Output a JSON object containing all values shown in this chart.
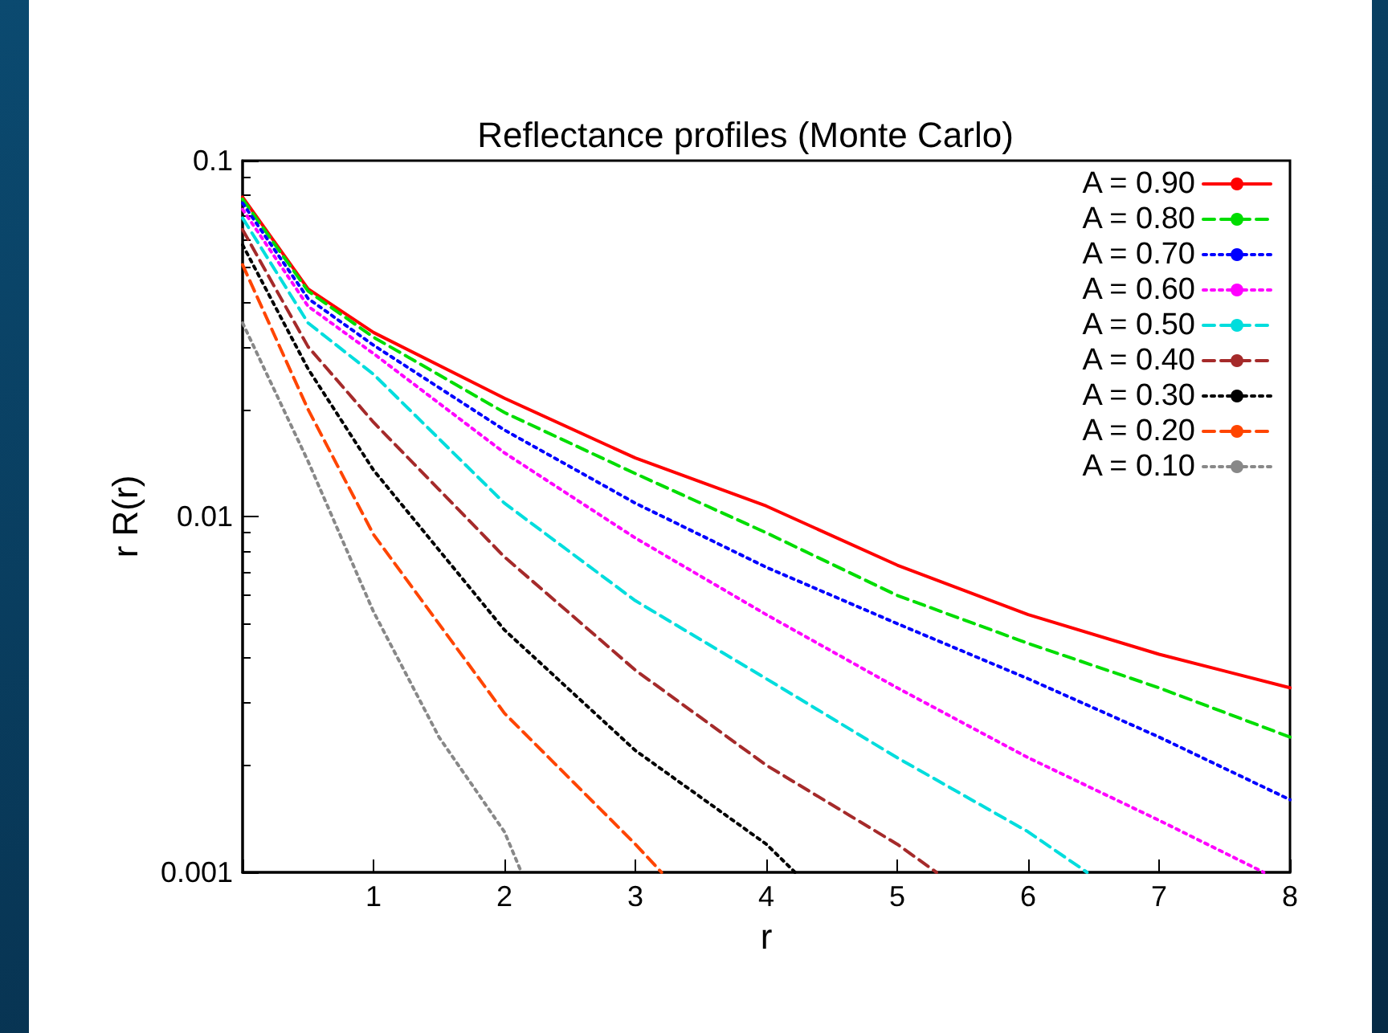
{
  "chart_data": {
    "type": "line",
    "title": "Reflectance profiles (Monte Carlo)",
    "xlabel": "r",
    "ylabel": "r R(r)",
    "log": "y",
    "xlim": [
      0,
      8
    ],
    "ylim": [
      0.001,
      0.1
    ],
    "xticks": [
      {
        "value": 0,
        "label": null
      },
      1,
      2,
      3,
      4,
      5,
      6,
      7,
      8
    ],
    "yticks": [
      0.001,
      0.01,
      0.1
    ],
    "legend": "top right",
    "grid": false,
    "marker": "none",
    "series": [
      {
        "name": "A = 0.90",
        "color": "#ff0000",
        "line_style": "solid",
        "x": [
          0,
          0.5,
          1,
          2,
          3,
          4,
          5,
          6,
          7,
          8
        ],
        "values": [
          0.079,
          0.0436,
          0.0329,
          0.0215,
          0.0146,
          0.0107,
          0.0073,
          0.0053,
          0.0041,
          0.0033
        ]
      },
      {
        "name": "A = 0.80",
        "color": "#00dd00",
        "line_style": "dashed",
        "x": [
          0,
          0.5,
          1,
          2,
          3,
          4,
          5,
          6,
          7,
          8
        ],
        "values": [
          0.078,
          0.043,
          0.0319,
          0.0196,
          0.0132,
          0.009,
          0.006,
          0.0044,
          0.0033,
          0.0024
        ]
      },
      {
        "name": "A = 0.70",
        "color": "#0000ff",
        "line_style": "dotted",
        "x": [
          0,
          0.5,
          1,
          2,
          3,
          4,
          5,
          6,
          7,
          8
        ],
        "values": [
          0.076,
          0.041,
          0.0303,
          0.0175,
          0.0109,
          0.0072,
          0.005,
          0.0035,
          0.0024,
          0.0016
        ]
      },
      {
        "name": "A = 0.60",
        "color": "#ff00ff",
        "line_style": "dotted",
        "x": [
          0,
          0.5,
          1,
          2,
          3,
          4,
          5,
          6,
          7,
          7.8
        ],
        "values": [
          0.073,
          0.039,
          0.0287,
          0.0151,
          0.0087,
          0.0053,
          0.0033,
          0.0021,
          0.0014,
          0.001
        ]
      },
      {
        "name": "A = 0.50",
        "color": "#00dddd",
        "line_style": "dashed",
        "x": [
          0,
          0.5,
          1,
          2,
          3,
          4,
          5,
          6,
          6.45
        ],
        "values": [
          0.069,
          0.035,
          0.0251,
          0.0109,
          0.0058,
          0.0035,
          0.0021,
          0.0013,
          0.001
        ]
      },
      {
        "name": "A = 0.40",
        "color": "#a52a2a",
        "line_style": "dashed",
        "x": [
          0,
          0.5,
          1,
          2,
          3,
          4,
          5,
          5.3
        ],
        "values": [
          0.064,
          0.03,
          0.0184,
          0.0077,
          0.0037,
          0.002,
          0.0012,
          0.001
        ]
      },
      {
        "name": "A = 0.30",
        "color": "#000000",
        "line_style": "dotted",
        "x": [
          0,
          0.5,
          1,
          2,
          3,
          4,
          4.22
        ],
        "values": [
          0.058,
          0.026,
          0.0135,
          0.0048,
          0.0022,
          0.0012,
          0.001
        ]
      },
      {
        "name": "A = 0.20",
        "color": "#ff4500",
        "line_style": "dashed",
        "x": [
          0,
          0.5,
          1,
          2,
          3,
          3.2
        ],
        "values": [
          0.051,
          0.02,
          0.0089,
          0.0028,
          0.0012,
          0.001
        ]
      },
      {
        "name": "A = 0.10",
        "color": "#888888",
        "line_style": "dotted",
        "x": [
          0,
          0.5,
          1,
          1.5,
          2,
          2.13
        ],
        "values": [
          0.035,
          0.0143,
          0.0054,
          0.0024,
          0.0013,
          0.001
        ]
      }
    ]
  }
}
